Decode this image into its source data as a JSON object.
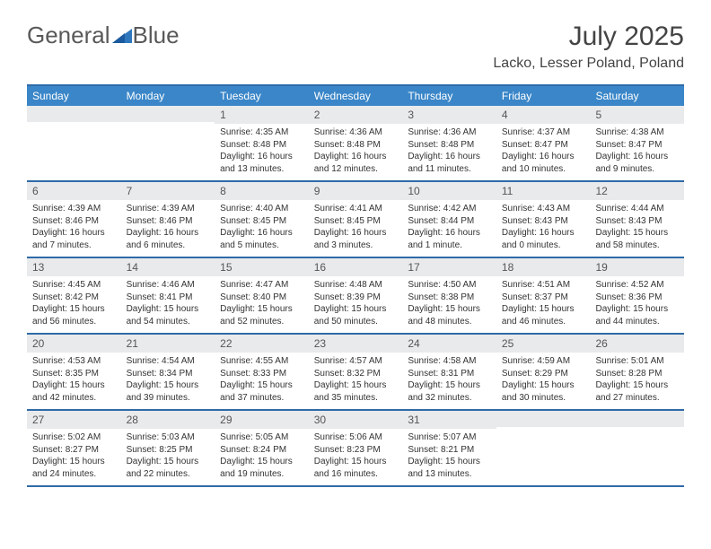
{
  "brand": {
    "part1": "General",
    "part2": "Blue"
  },
  "title": "July 2025",
  "location": "Lacko, Lesser Poland, Poland",
  "colors": {
    "header_bg": "#3a86c8",
    "header_text": "#ffffff",
    "rule": "#2f6aa8",
    "daynum_bg": "#e9eaec",
    "text": "#333333",
    "brand_text": "#595959",
    "brand_accent": "#2f77bd"
  },
  "day_headers": [
    "Sunday",
    "Monday",
    "Tuesday",
    "Wednesday",
    "Thursday",
    "Friday",
    "Saturday"
  ],
  "weeks": [
    [
      {
        "n": "",
        "sunrise": "",
        "sunset": "",
        "daylight": ""
      },
      {
        "n": "",
        "sunrise": "",
        "sunset": "",
        "daylight": ""
      },
      {
        "n": "1",
        "sunrise": "Sunrise: 4:35 AM",
        "sunset": "Sunset: 8:48 PM",
        "daylight": "Daylight: 16 hours and 13 minutes."
      },
      {
        "n": "2",
        "sunrise": "Sunrise: 4:36 AM",
        "sunset": "Sunset: 8:48 PM",
        "daylight": "Daylight: 16 hours and 12 minutes."
      },
      {
        "n": "3",
        "sunrise": "Sunrise: 4:36 AM",
        "sunset": "Sunset: 8:48 PM",
        "daylight": "Daylight: 16 hours and 11 minutes."
      },
      {
        "n": "4",
        "sunrise": "Sunrise: 4:37 AM",
        "sunset": "Sunset: 8:47 PM",
        "daylight": "Daylight: 16 hours and 10 minutes."
      },
      {
        "n": "5",
        "sunrise": "Sunrise: 4:38 AM",
        "sunset": "Sunset: 8:47 PM",
        "daylight": "Daylight: 16 hours and 9 minutes."
      }
    ],
    [
      {
        "n": "6",
        "sunrise": "Sunrise: 4:39 AM",
        "sunset": "Sunset: 8:46 PM",
        "daylight": "Daylight: 16 hours and 7 minutes."
      },
      {
        "n": "7",
        "sunrise": "Sunrise: 4:39 AM",
        "sunset": "Sunset: 8:46 PM",
        "daylight": "Daylight: 16 hours and 6 minutes."
      },
      {
        "n": "8",
        "sunrise": "Sunrise: 4:40 AM",
        "sunset": "Sunset: 8:45 PM",
        "daylight": "Daylight: 16 hours and 5 minutes."
      },
      {
        "n": "9",
        "sunrise": "Sunrise: 4:41 AM",
        "sunset": "Sunset: 8:45 PM",
        "daylight": "Daylight: 16 hours and 3 minutes."
      },
      {
        "n": "10",
        "sunrise": "Sunrise: 4:42 AM",
        "sunset": "Sunset: 8:44 PM",
        "daylight": "Daylight: 16 hours and 1 minute."
      },
      {
        "n": "11",
        "sunrise": "Sunrise: 4:43 AM",
        "sunset": "Sunset: 8:43 PM",
        "daylight": "Daylight: 16 hours and 0 minutes."
      },
      {
        "n": "12",
        "sunrise": "Sunrise: 4:44 AM",
        "sunset": "Sunset: 8:43 PM",
        "daylight": "Daylight: 15 hours and 58 minutes."
      }
    ],
    [
      {
        "n": "13",
        "sunrise": "Sunrise: 4:45 AM",
        "sunset": "Sunset: 8:42 PM",
        "daylight": "Daylight: 15 hours and 56 minutes."
      },
      {
        "n": "14",
        "sunrise": "Sunrise: 4:46 AM",
        "sunset": "Sunset: 8:41 PM",
        "daylight": "Daylight: 15 hours and 54 minutes."
      },
      {
        "n": "15",
        "sunrise": "Sunrise: 4:47 AM",
        "sunset": "Sunset: 8:40 PM",
        "daylight": "Daylight: 15 hours and 52 minutes."
      },
      {
        "n": "16",
        "sunrise": "Sunrise: 4:48 AM",
        "sunset": "Sunset: 8:39 PM",
        "daylight": "Daylight: 15 hours and 50 minutes."
      },
      {
        "n": "17",
        "sunrise": "Sunrise: 4:50 AM",
        "sunset": "Sunset: 8:38 PM",
        "daylight": "Daylight: 15 hours and 48 minutes."
      },
      {
        "n": "18",
        "sunrise": "Sunrise: 4:51 AM",
        "sunset": "Sunset: 8:37 PM",
        "daylight": "Daylight: 15 hours and 46 minutes."
      },
      {
        "n": "19",
        "sunrise": "Sunrise: 4:52 AM",
        "sunset": "Sunset: 8:36 PM",
        "daylight": "Daylight: 15 hours and 44 minutes."
      }
    ],
    [
      {
        "n": "20",
        "sunrise": "Sunrise: 4:53 AM",
        "sunset": "Sunset: 8:35 PM",
        "daylight": "Daylight: 15 hours and 42 minutes."
      },
      {
        "n": "21",
        "sunrise": "Sunrise: 4:54 AM",
        "sunset": "Sunset: 8:34 PM",
        "daylight": "Daylight: 15 hours and 39 minutes."
      },
      {
        "n": "22",
        "sunrise": "Sunrise: 4:55 AM",
        "sunset": "Sunset: 8:33 PM",
        "daylight": "Daylight: 15 hours and 37 minutes."
      },
      {
        "n": "23",
        "sunrise": "Sunrise: 4:57 AM",
        "sunset": "Sunset: 8:32 PM",
        "daylight": "Daylight: 15 hours and 35 minutes."
      },
      {
        "n": "24",
        "sunrise": "Sunrise: 4:58 AM",
        "sunset": "Sunset: 8:31 PM",
        "daylight": "Daylight: 15 hours and 32 minutes."
      },
      {
        "n": "25",
        "sunrise": "Sunrise: 4:59 AM",
        "sunset": "Sunset: 8:29 PM",
        "daylight": "Daylight: 15 hours and 30 minutes."
      },
      {
        "n": "26",
        "sunrise": "Sunrise: 5:01 AM",
        "sunset": "Sunset: 8:28 PM",
        "daylight": "Daylight: 15 hours and 27 minutes."
      }
    ],
    [
      {
        "n": "27",
        "sunrise": "Sunrise: 5:02 AM",
        "sunset": "Sunset: 8:27 PM",
        "daylight": "Daylight: 15 hours and 24 minutes."
      },
      {
        "n": "28",
        "sunrise": "Sunrise: 5:03 AM",
        "sunset": "Sunset: 8:25 PM",
        "daylight": "Daylight: 15 hours and 22 minutes."
      },
      {
        "n": "29",
        "sunrise": "Sunrise: 5:05 AM",
        "sunset": "Sunset: 8:24 PM",
        "daylight": "Daylight: 15 hours and 19 minutes."
      },
      {
        "n": "30",
        "sunrise": "Sunrise: 5:06 AM",
        "sunset": "Sunset: 8:23 PM",
        "daylight": "Daylight: 15 hours and 16 minutes."
      },
      {
        "n": "31",
        "sunrise": "Sunrise: 5:07 AM",
        "sunset": "Sunset: 8:21 PM",
        "daylight": "Daylight: 15 hours and 13 minutes."
      },
      {
        "n": "",
        "sunrise": "",
        "sunset": "",
        "daylight": ""
      },
      {
        "n": "",
        "sunrise": "",
        "sunset": "",
        "daylight": ""
      }
    ]
  ]
}
